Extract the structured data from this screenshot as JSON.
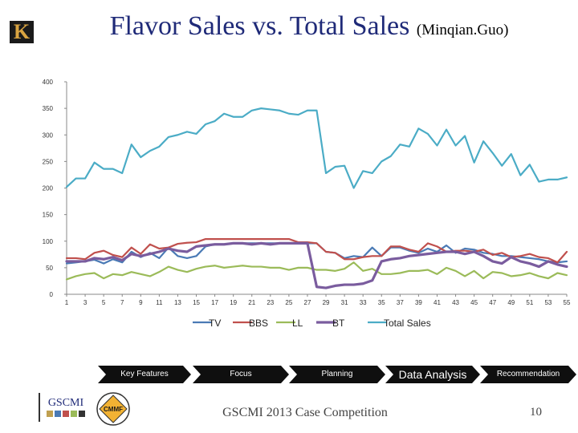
{
  "header": {
    "title": "Flavor Sales vs. Total Sales",
    "subtitle": "(Minqian.Guo)"
  },
  "nav": {
    "items": [
      "Key Features",
      "Focus",
      "Planning",
      "Data Analysis",
      "Recommendation"
    ]
  },
  "footer": {
    "text": "GSCMI 2013 Case Competition",
    "page_number": "10"
  },
  "logos": {
    "top_left_letter": "K",
    "footer_left": "GSCMI",
    "footer_right": "CMMF"
  },
  "colors": {
    "title": "#1f2a78",
    "TV": "#4a7ab5",
    "BBS": "#c0504d",
    "LL": "#9bbb59",
    "BT": "#7a5c9e",
    "Total Sales": "#4bacc6",
    "nav_bg": "#0f0f0f"
  },
  "chart_data": {
    "type": "line",
    "title": "",
    "xlabel": "",
    "ylabel": "",
    "ylim": [
      0,
      400
    ],
    "yticks": [
      "0",
      "50",
      "100",
      "150",
      "200",
      "250",
      "300",
      "350",
      "400"
    ],
    "x": [
      1,
      2,
      3,
      4,
      5,
      6,
      7,
      8,
      9,
      10,
      11,
      12,
      13,
      14,
      15,
      16,
      17,
      18,
      19,
      20,
      21,
      22,
      23,
      24,
      25,
      26,
      27,
      28,
      29,
      30,
      31,
      32,
      33,
      34,
      35,
      36,
      37,
      38,
      39,
      40,
      41,
      42,
      43,
      44,
      45,
      46,
      47,
      48,
      49,
      50,
      51,
      52,
      53,
      54,
      55
    ],
    "xticks": [
      "1",
      "3",
      "5",
      "7",
      "9",
      "11",
      "13",
      "15",
      "17",
      "19",
      "21",
      "23",
      "25",
      "27",
      "29",
      "31",
      "33",
      "35",
      "37",
      "39",
      "41",
      "43",
      "45",
      "47",
      "49",
      "51",
      "53",
      "55"
    ],
    "legend_position": "bottom",
    "series": [
      {
        "name": "TV",
        "values": [
          58,
          60,
          62,
          65,
          58,
          66,
          60,
          80,
          70,
          78,
          68,
          88,
          72,
          68,
          72,
          90,
          94,
          94,
          96,
          96,
          96,
          96,
          96,
          96,
          96,
          96,
          96,
          96,
          80,
          78,
          68,
          72,
          70,
          88,
          72,
          88,
          88,
          82,
          78,
          86,
          80,
          92,
          78,
          86,
          84,
          78,
          76,
          72,
          72,
          70,
          68,
          66,
          62,
          60,
          62
        ]
      },
      {
        "name": "BBS",
        "values": [
          68,
          68,
          66,
          78,
          82,
          74,
          70,
          88,
          76,
          94,
          86,
          88,
          95,
          97,
          98,
          104,
          104,
          104,
          104,
          104,
          104,
          104,
          104,
          104,
          104,
          98,
          98,
          96,
          80,
          78,
          66,
          66,
          70,
          72,
          72,
          90,
          90,
          84,
          80,
          96,
          90,
          80,
          82,
          82,
          80,
          84,
          74,
          78,
          70,
          72,
          76,
          70,
          68,
          60,
          80
        ]
      },
      {
        "name": "LL",
        "values": [
          28,
          34,
          38,
          40,
          30,
          38,
          36,
          42,
          38,
          34,
          42,
          52,
          46,
          42,
          48,
          52,
          54,
          50,
          52,
          54,
          52,
          52,
          50,
          50,
          46,
          50,
          50,
          46,
          46,
          44,
          48,
          60,
          44,
          48,
          38,
          38,
          40,
          44,
          44,
          46,
          38,
          50,
          44,
          34,
          44,
          30,
          42,
          40,
          34,
          36,
          40,
          34,
          30,
          40,
          36
        ]
      },
      {
        "name": "BT",
        "values": [
          62,
          62,
          62,
          68,
          66,
          70,
          64,
          76,
          72,
          76,
          80,
          86,
          82,
          80,
          90,
          92,
          94,
          94,
          96,
          96,
          94,
          96,
          94,
          96,
          96,
          96,
          96,
          14,
          12,
          16,
          18,
          18,
          20,
          26,
          62,
          66,
          68,
          72,
          74,
          76,
          78,
          80,
          80,
          76,
          80,
          72,
          62,
          58,
          70,
          62,
          58,
          52,
          62,
          56,
          52
        ]
      },
      {
        "name": "Total Sales",
        "values": [
          202,
          218,
          218,
          248,
          236,
          236,
          228,
          282,
          258,
          270,
          278,
          296,
          300,
          306,
          302,
          320,
          326,
          340,
          334,
          334,
          346,
          350,
          348,
          346,
          340,
          338,
          346,
          346,
          228,
          240,
          242,
          200,
          232,
          228,
          250,
          260,
          282,
          278,
          312,
          302,
          280,
          310,
          280,
          298,
          248,
          288,
          266,
          242,
          264,
          224,
          244,
          212,
          216,
          216,
          220
        ]
      }
    ]
  }
}
